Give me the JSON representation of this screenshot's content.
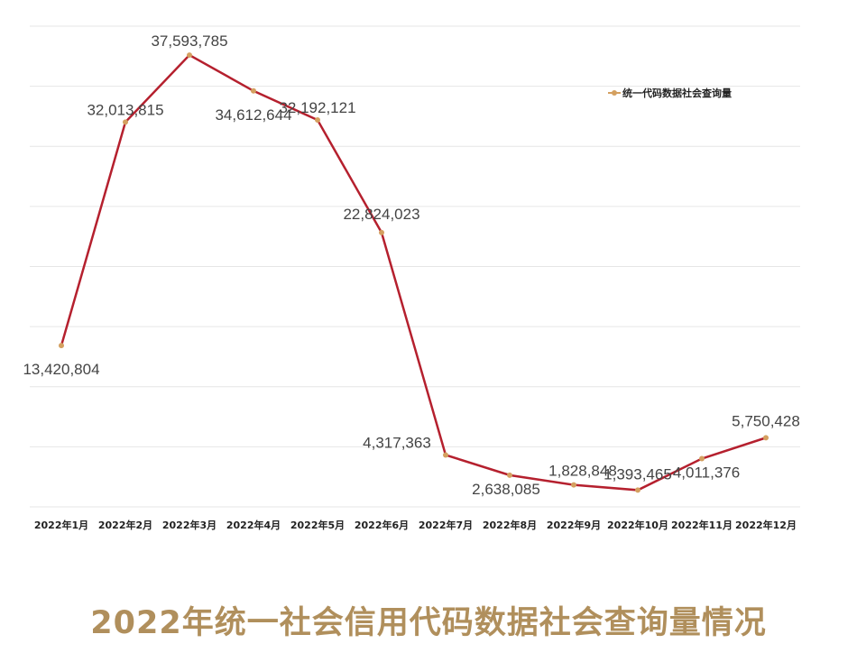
{
  "caption": "2022年统一社会信用代码数据社会查询量情况",
  "chart_data": {
    "type": "line",
    "categories": [
      "2022年1月",
      "2022年2月",
      "2022年3月",
      "2022年4月",
      "2022年5月",
      "2022年6月",
      "2022年7月",
      "2022年8月",
      "2022年9月",
      "2022年10月",
      "2022年11月",
      "2022年12月"
    ],
    "series": [
      {
        "name": "统一代码数据社会查询量",
        "values": [
          13420804,
          32013815,
          37593785,
          34612644,
          32192121,
          22824023,
          4317363,
          2638085,
          1828848,
          1393465,
          4011376,
          5750428
        ]
      }
    ],
    "data_labels": [
      "13,420,804",
      "32,013,815",
      "37,593,785",
      "34,612,644",
      "32,192,121",
      "22,824,023",
      "4,317,363",
      "2,638,085",
      "1,828,848",
      "1,393,465",
      "4,011,376",
      "5,750,428"
    ],
    "ylim": [
      0,
      40000000
    ],
    "grid": true,
    "legend_position": "top-right",
    "colors": {
      "line": "#b5202e",
      "marker": "#d4a060",
      "grid": "#e6e6e6",
      "caption": "#b08f5c"
    }
  }
}
